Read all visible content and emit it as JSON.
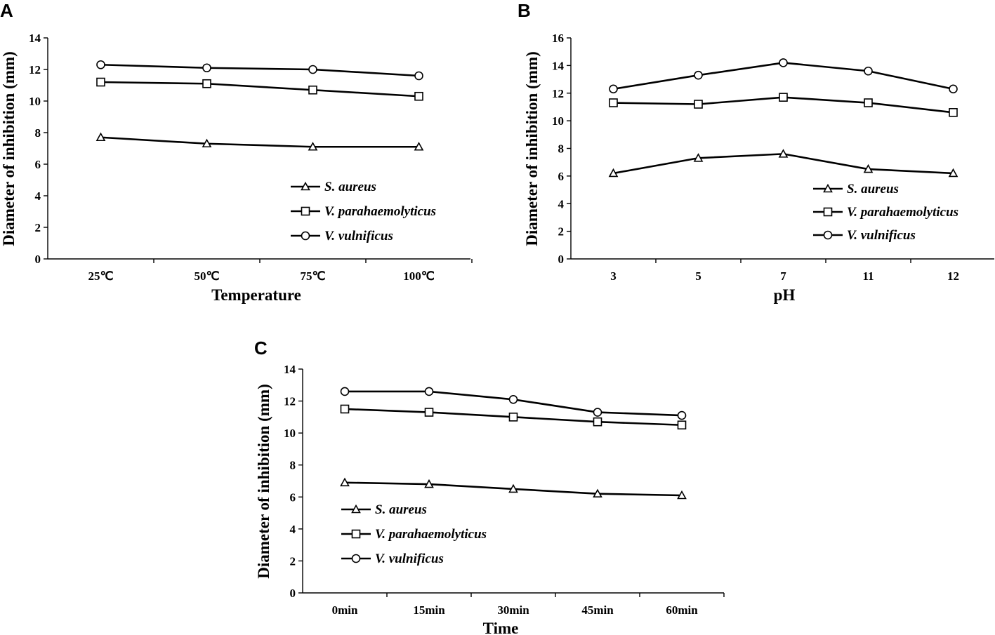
{
  "chart_data": [
    {
      "panel": "A",
      "type": "line",
      "categories": [
        "25℃",
        "50℃",
        "75℃",
        "100℃"
      ],
      "xlabel": "Temperature",
      "ylabel": "Diameter of inhibition (mm)",
      "ylim": [
        0,
        14
      ],
      "yticks": [
        "0",
        "2",
        "4",
        "6",
        "8",
        "10",
        "12",
        "14"
      ],
      "legend_position": "center-right",
      "series": [
        {
          "name": "S. aureus",
          "marker": "triangle",
          "values": [
            7.7,
            7.3,
            7.1,
            7.1
          ]
        },
        {
          "name": "V. parahaemolyticus",
          "marker": "square",
          "values": [
            11.2,
            11.1,
            10.7,
            10.3
          ]
        },
        {
          "name": "V. vulnificus",
          "marker": "circle",
          "values": [
            12.3,
            12.1,
            12.0,
            11.6
          ]
        }
      ]
    },
    {
      "panel": "B",
      "type": "line",
      "categories": [
        "3",
        "5",
        "7",
        "11",
        "12"
      ],
      "xlabel": "pH",
      "ylabel": "Diameter of inhibition (mm)",
      "ylim": [
        0,
        16
      ],
      "yticks": [
        "0",
        "2",
        "4",
        "6",
        "8",
        "10",
        "12",
        "14",
        "16"
      ],
      "legend_position": "bottom-right",
      "series": [
        {
          "name": "S. aureus",
          "marker": "triangle",
          "values": [
            6.2,
            7.3,
            7.6,
            6.5,
            6.2
          ]
        },
        {
          "name": "V. parahaemolyticus",
          "marker": "square",
          "values": [
            11.3,
            11.2,
            11.7,
            11.3,
            10.6
          ]
        },
        {
          "name": "V. vulnificus",
          "marker": "circle",
          "values": [
            12.3,
            13.3,
            14.2,
            13.6,
            12.3
          ]
        }
      ]
    },
    {
      "panel": "C",
      "type": "line",
      "categories": [
        "0min",
        "15min",
        "30min",
        "45min",
        "60min"
      ],
      "xlabel": "Time",
      "ylabel": "Diameter of inhibition (mm)",
      "ylim": [
        0,
        14
      ],
      "yticks": [
        "0",
        "2",
        "4",
        "6",
        "8",
        "10",
        "12",
        "14"
      ],
      "legend_position": "bottom-left",
      "series": [
        {
          "name": "S. aureus",
          "marker": "triangle",
          "values": [
            6.9,
            6.8,
            6.5,
            6.2,
            6.1
          ]
        },
        {
          "name": "V. parahaemolyticus",
          "marker": "square",
          "values": [
            11.5,
            11.3,
            11.0,
            10.7,
            10.5
          ]
        },
        {
          "name": "V. vulnificus",
          "marker": "circle",
          "values": [
            12.6,
            12.6,
            12.1,
            11.3,
            11.1
          ]
        }
      ]
    }
  ]
}
